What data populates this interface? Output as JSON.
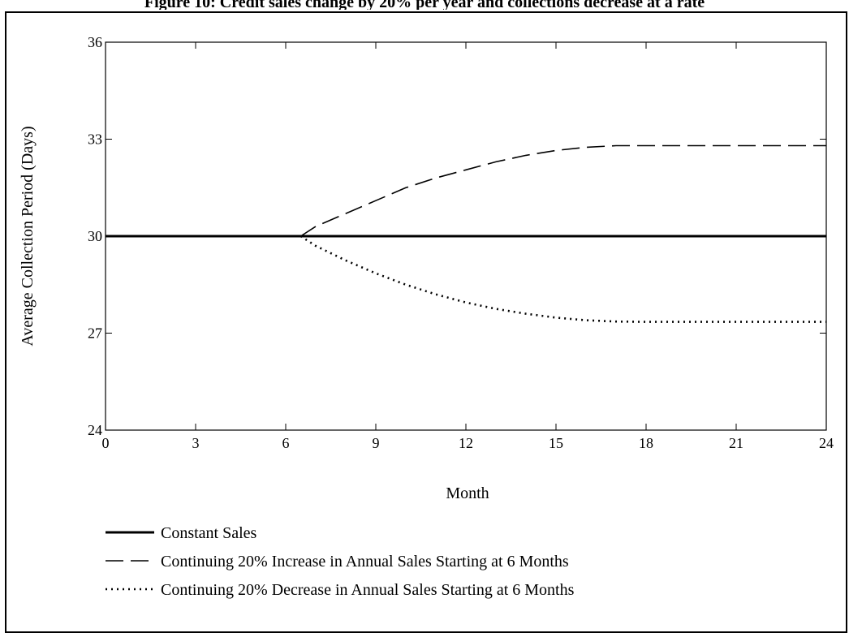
{
  "caption": "Figure 10: Credit sales change by 20% per year and collections decrease at a rate",
  "chart_data": {
    "type": "line",
    "title": "",
    "xlabel": "Month",
    "ylabel": "Average Collection Period (Days)",
    "xlim": [
      0,
      24
    ],
    "ylim": [
      24,
      36
    ],
    "xticks": [
      "0",
      "3",
      "6",
      "9",
      "12",
      "15",
      "18",
      "21",
      "24"
    ],
    "yticks": [
      "24",
      "27",
      "30",
      "33",
      "36"
    ],
    "grid": false,
    "legend_position": "bottom-left",
    "series": [
      {
        "name": "Constant Sales",
        "style": "solid",
        "color": "#000000",
        "x": [
          0,
          24
        ],
        "y": [
          30,
          30
        ]
      },
      {
        "name": "Continuing 20% Increase in Annual Sales Starting at 6 Months",
        "style": "dashed",
        "color": "#000000",
        "x": [
          6.5,
          7,
          8,
          9,
          10,
          11,
          12,
          13,
          14,
          15,
          16,
          17,
          18,
          19,
          20,
          21,
          22,
          23,
          24
        ],
        "y": [
          30.0,
          30.3,
          30.7,
          31.1,
          31.5,
          31.8,
          32.05,
          32.3,
          32.5,
          32.65,
          32.75,
          32.8,
          32.8,
          32.8,
          32.8,
          32.8,
          32.8,
          32.8,
          32.8
        ]
      },
      {
        "name": "Continuing 20% Decrease in Annual Sales Starting at 6 Months",
        "style": "dotted",
        "color": "#000000",
        "x": [
          6.5,
          7,
          8,
          9,
          10,
          11,
          12,
          13,
          14,
          15,
          16,
          17,
          18,
          19,
          20,
          21,
          22,
          23,
          24
        ],
        "y": [
          30.0,
          29.7,
          29.25,
          28.85,
          28.5,
          28.2,
          27.95,
          27.75,
          27.6,
          27.48,
          27.4,
          27.36,
          27.35,
          27.35,
          27.35,
          27.35,
          27.35,
          27.35,
          27.35
        ]
      }
    ]
  }
}
